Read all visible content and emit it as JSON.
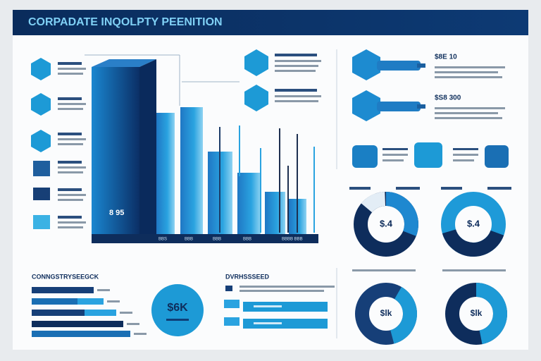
{
  "header": {
    "title": "CORPADATE INQOLPTY PEENITION"
  },
  "main_chart": {
    "label": "8 95",
    "base_labels": [
      "BBS",
      "BBB",
      "BBB",
      "BBB",
      "BBBB  BBB"
    ]
  },
  "right_panel": {
    "items": [
      {
        "label": "$8E 10"
      },
      {
        "label": "$S8 300"
      }
    ],
    "donuts": [
      {
        "label": "$.4"
      },
      {
        "label": "$.4"
      },
      {
        "label": "$lk"
      },
      {
        "label": "$lk"
      }
    ]
  },
  "bottom_left": {
    "title": "CONNGSTRYSEEGCK",
    "circle_label": "$6K"
  },
  "bottom_middle": {
    "title": "DVRHSSSEED"
  }
}
